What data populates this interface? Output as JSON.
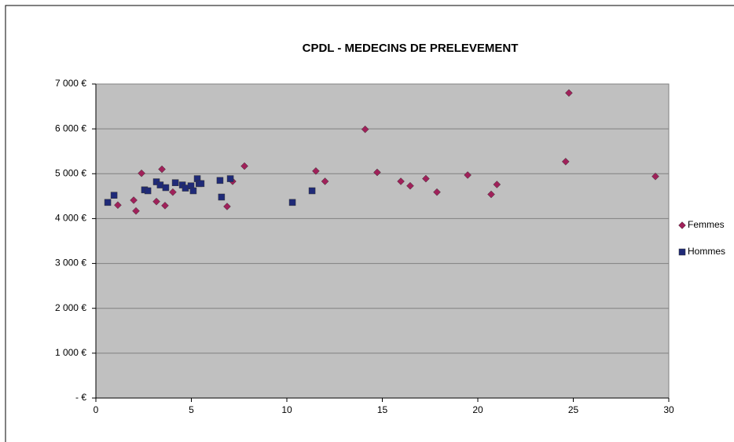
{
  "chart_data": {
    "type": "scatter",
    "title": "CPDL - MEDECINS DE PRELEVEMENT",
    "series": [
      {
        "name": "Femmes",
        "color": "#a0215a",
        "marker": "diamond",
        "x": [
          1.15,
          1.98,
          2.1,
          2.39,
          3.17,
          3.46,
          3.62,
          4.03,
          6.87,
          7.16,
          7.78,
          11.52,
          12.0,
          14.1,
          14.73,
          15.97,
          16.46,
          17.28,
          17.86,
          19.47,
          20.7,
          21.0,
          24.6,
          24.77,
          29.3
        ],
        "values": [
          4300,
          4410,
          4170,
          5010,
          4380,
          5100,
          4290,
          4590,
          4270,
          4830,
          5170,
          5060,
          4830,
          5990,
          5030,
          4830,
          4730,
          4890,
          4590,
          4970,
          4540,
          4760,
          5270,
          6800,
          4940
        ]
      },
      {
        "name": "Hommes",
        "color": "#1f2a78",
        "marker": "square",
        "x": [
          0.62,
          0.95,
          2.55,
          2.72,
          3.17,
          3.37,
          3.66,
          4.16,
          4.53,
          4.69,
          4.98,
          5.1,
          5.31,
          5.4,
          5.51,
          6.5,
          6.58,
          7.04,
          10.29,
          11.32
        ],
        "values": [
          4360,
          4520,
          4640,
          4620,
          4820,
          4750,
          4690,
          4800,
          4750,
          4680,
          4730,
          4620,
          4890,
          4780,
          4780,
          4850,
          4480,
          4890,
          4360,
          4620
        ]
      }
    ],
    "xlim": [
      0,
      30
    ],
    "xticks": [
      0,
      5,
      10,
      15,
      20,
      25,
      30
    ],
    "ylim": [
      0,
      7000
    ],
    "yticks": [
      {
        "value": 0,
        "label": "-  €"
      },
      {
        "value": 1000,
        "label": "1 000 €"
      },
      {
        "value": 2000,
        "label": "2 000 €"
      },
      {
        "value": 3000,
        "label": "3 000 €"
      },
      {
        "value": 4000,
        "label": "4 000 €"
      },
      {
        "value": 5000,
        "label": "5 000 €"
      },
      {
        "value": 6000,
        "label": "6 000 €"
      },
      {
        "value": 7000,
        "label": "7 000 €"
      }
    ],
    "grid": true,
    "legend": "right"
  }
}
